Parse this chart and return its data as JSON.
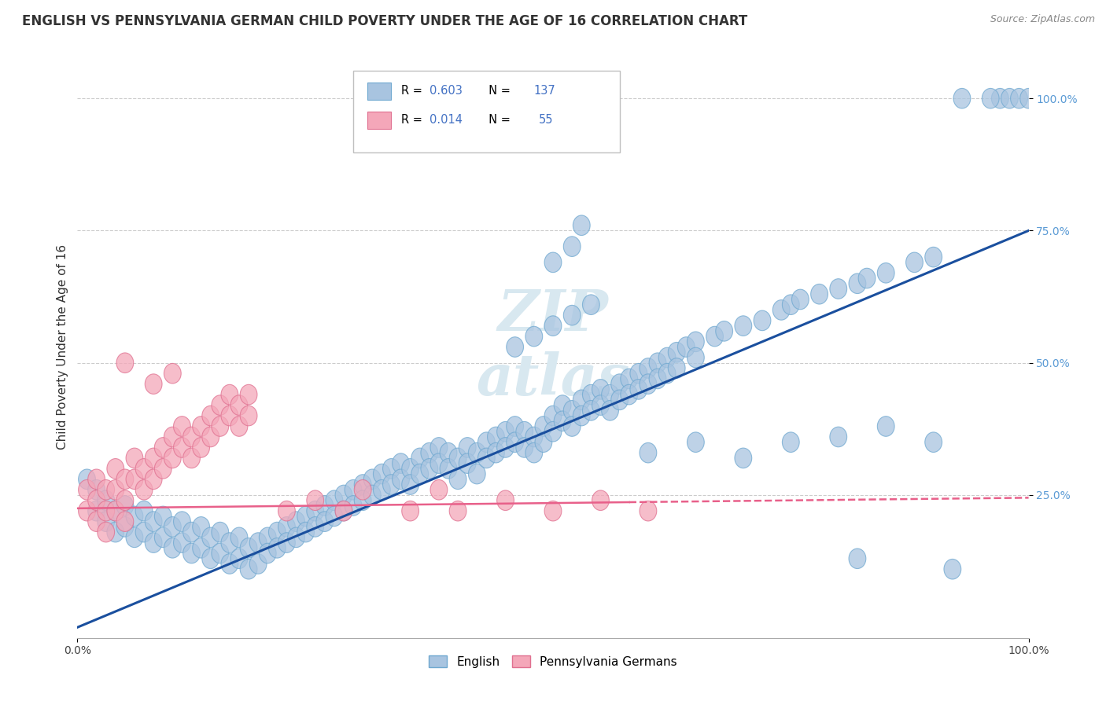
{
  "title": "ENGLISH VS PENNSYLVANIA GERMAN CHILD POVERTY UNDER THE AGE OF 16 CORRELATION CHART",
  "source": "Source: ZipAtlas.com",
  "ylabel": "Child Poverty Under the Age of 16",
  "xlim": [
    0.0,
    1.0
  ],
  "ylim": [
    -0.02,
    1.08
  ],
  "english_color": "#a8c4e0",
  "english_edge_color": "#6fa8d0",
  "pg_color": "#f4a7b9",
  "pg_edge_color": "#e07090",
  "line_english_color": "#1a4f9e",
  "line_pg_color": "#e8608a",
  "watermark_color": "#d8e8f0",
  "english_scatter": [
    [
      0.01,
      0.28
    ],
    [
      0.02,
      0.26
    ],
    [
      0.02,
      0.22
    ],
    [
      0.03,
      0.24
    ],
    [
      0.03,
      0.2
    ],
    [
      0.04,
      0.22
    ],
    [
      0.04,
      0.18
    ],
    [
      0.05,
      0.23
    ],
    [
      0.05,
      0.19
    ],
    [
      0.06,
      0.21
    ],
    [
      0.06,
      0.17
    ],
    [
      0.07,
      0.22
    ],
    [
      0.07,
      0.18
    ],
    [
      0.08,
      0.2
    ],
    [
      0.08,
      0.16
    ],
    [
      0.09,
      0.21
    ],
    [
      0.09,
      0.17
    ],
    [
      0.1,
      0.19
    ],
    [
      0.1,
      0.15
    ],
    [
      0.11,
      0.2
    ],
    [
      0.11,
      0.16
    ],
    [
      0.12,
      0.18
    ],
    [
      0.12,
      0.14
    ],
    [
      0.13,
      0.19
    ],
    [
      0.13,
      0.15
    ],
    [
      0.14,
      0.17
    ],
    [
      0.14,
      0.13
    ],
    [
      0.15,
      0.18
    ],
    [
      0.15,
      0.14
    ],
    [
      0.16,
      0.16
    ],
    [
      0.16,
      0.12
    ],
    [
      0.17,
      0.17
    ],
    [
      0.17,
      0.13
    ],
    [
      0.18,
      0.15
    ],
    [
      0.18,
      0.11
    ],
    [
      0.19,
      0.16
    ],
    [
      0.19,
      0.12
    ],
    [
      0.2,
      0.17
    ],
    [
      0.2,
      0.14
    ],
    [
      0.21,
      0.18
    ],
    [
      0.21,
      0.15
    ],
    [
      0.22,
      0.19
    ],
    [
      0.22,
      0.16
    ],
    [
      0.23,
      0.2
    ],
    [
      0.23,
      0.17
    ],
    [
      0.24,
      0.21
    ],
    [
      0.24,
      0.18
    ],
    [
      0.25,
      0.22
    ],
    [
      0.25,
      0.19
    ],
    [
      0.26,
      0.23
    ],
    [
      0.26,
      0.2
    ],
    [
      0.27,
      0.24
    ],
    [
      0.27,
      0.21
    ],
    [
      0.28,
      0.25
    ],
    [
      0.28,
      0.22
    ],
    [
      0.29,
      0.26
    ],
    [
      0.29,
      0.23
    ],
    [
      0.3,
      0.27
    ],
    [
      0.3,
      0.24
    ],
    [
      0.31,
      0.28
    ],
    [
      0.31,
      0.25
    ],
    [
      0.32,
      0.29
    ],
    [
      0.32,
      0.26
    ],
    [
      0.33,
      0.3
    ],
    [
      0.33,
      0.27
    ],
    [
      0.34,
      0.31
    ],
    [
      0.34,
      0.28
    ],
    [
      0.35,
      0.3
    ],
    [
      0.35,
      0.27
    ],
    [
      0.36,
      0.32
    ],
    [
      0.36,
      0.29
    ],
    [
      0.37,
      0.33
    ],
    [
      0.37,
      0.3
    ],
    [
      0.38,
      0.34
    ],
    [
      0.38,
      0.31
    ],
    [
      0.39,
      0.33
    ],
    [
      0.39,
      0.3
    ],
    [
      0.4,
      0.32
    ],
    [
      0.4,
      0.28
    ],
    [
      0.41,
      0.34
    ],
    [
      0.41,
      0.31
    ],
    [
      0.42,
      0.33
    ],
    [
      0.42,
      0.29
    ],
    [
      0.43,
      0.35
    ],
    [
      0.43,
      0.32
    ],
    [
      0.44,
      0.36
    ],
    [
      0.44,
      0.33
    ],
    [
      0.45,
      0.37
    ],
    [
      0.45,
      0.34
    ],
    [
      0.46,
      0.38
    ],
    [
      0.46,
      0.35
    ],
    [
      0.47,
      0.37
    ],
    [
      0.47,
      0.34
    ],
    [
      0.48,
      0.36
    ],
    [
      0.48,
      0.33
    ],
    [
      0.49,
      0.38
    ],
    [
      0.49,
      0.35
    ],
    [
      0.5,
      0.4
    ],
    [
      0.5,
      0.37
    ],
    [
      0.51,
      0.42
    ],
    [
      0.51,
      0.39
    ],
    [
      0.52,
      0.41
    ],
    [
      0.52,
      0.38
    ],
    [
      0.53,
      0.43
    ],
    [
      0.53,
      0.4
    ],
    [
      0.54,
      0.44
    ],
    [
      0.54,
      0.41
    ],
    [
      0.55,
      0.45
    ],
    [
      0.55,
      0.42
    ],
    [
      0.56,
      0.44
    ],
    [
      0.56,
      0.41
    ],
    [
      0.57,
      0.46
    ],
    [
      0.57,
      0.43
    ],
    [
      0.58,
      0.47
    ],
    [
      0.58,
      0.44
    ],
    [
      0.59,
      0.48
    ],
    [
      0.59,
      0.45
    ],
    [
      0.6,
      0.49
    ],
    [
      0.6,
      0.46
    ],
    [
      0.61,
      0.5
    ],
    [
      0.61,
      0.47
    ],
    [
      0.62,
      0.51
    ],
    [
      0.62,
      0.48
    ],
    [
      0.63,
      0.52
    ],
    [
      0.63,
      0.49
    ],
    [
      0.64,
      0.53
    ],
    [
      0.65,
      0.54
    ],
    [
      0.65,
      0.51
    ],
    [
      0.67,
      0.55
    ],
    [
      0.68,
      0.56
    ],
    [
      0.7,
      0.57
    ],
    [
      0.72,
      0.58
    ],
    [
      0.74,
      0.6
    ],
    [
      0.75,
      0.61
    ],
    [
      0.76,
      0.62
    ],
    [
      0.78,
      0.63
    ],
    [
      0.8,
      0.64
    ],
    [
      0.82,
      0.65
    ],
    [
      0.83,
      0.66
    ],
    [
      0.85,
      0.67
    ],
    [
      0.88,
      0.69
    ],
    [
      0.9,
      0.7
    ],
    [
      0.46,
      0.53
    ],
    [
      0.48,
      0.55
    ],
    [
      0.5,
      0.57
    ],
    [
      0.52,
      0.59
    ],
    [
      0.54,
      0.61
    ],
    [
      0.5,
      0.69
    ],
    [
      0.52,
      0.72
    ],
    [
      0.53,
      0.76
    ],
    [
      0.82,
      0.13
    ],
    [
      0.6,
      0.33
    ],
    [
      0.65,
      0.35
    ],
    [
      0.7,
      0.32
    ],
    [
      0.75,
      0.35
    ],
    [
      0.8,
      0.36
    ],
    [
      0.85,
      0.38
    ],
    [
      0.9,
      0.35
    ],
    [
      0.97,
      1.0
    ],
    [
      0.98,
      1.0
    ],
    [
      0.99,
      1.0
    ],
    [
      1.0,
      1.0
    ],
    [
      0.96,
      1.0
    ],
    [
      0.93,
      1.0
    ],
    [
      0.92,
      0.11
    ]
  ],
  "pg_scatter": [
    [
      0.01,
      0.22
    ],
    [
      0.01,
      0.26
    ],
    [
      0.02,
      0.28
    ],
    [
      0.02,
      0.24
    ],
    [
      0.02,
      0.2
    ],
    [
      0.03,
      0.26
    ],
    [
      0.03,
      0.22
    ],
    [
      0.03,
      0.18
    ],
    [
      0.04,
      0.3
    ],
    [
      0.04,
      0.26
    ],
    [
      0.04,
      0.22
    ],
    [
      0.05,
      0.28
    ],
    [
      0.05,
      0.24
    ],
    [
      0.05,
      0.2
    ],
    [
      0.06,
      0.32
    ],
    [
      0.06,
      0.28
    ],
    [
      0.07,
      0.3
    ],
    [
      0.07,
      0.26
    ],
    [
      0.08,
      0.32
    ],
    [
      0.08,
      0.28
    ],
    [
      0.09,
      0.34
    ],
    [
      0.09,
      0.3
    ],
    [
      0.1,
      0.36
    ],
    [
      0.1,
      0.32
    ],
    [
      0.11,
      0.38
    ],
    [
      0.11,
      0.34
    ],
    [
      0.12,
      0.36
    ],
    [
      0.12,
      0.32
    ],
    [
      0.13,
      0.38
    ],
    [
      0.13,
      0.34
    ],
    [
      0.14,
      0.4
    ],
    [
      0.14,
      0.36
    ],
    [
      0.15,
      0.42
    ],
    [
      0.15,
      0.38
    ],
    [
      0.16,
      0.44
    ],
    [
      0.16,
      0.4
    ],
    [
      0.17,
      0.42
    ],
    [
      0.17,
      0.38
    ],
    [
      0.18,
      0.44
    ],
    [
      0.18,
      0.4
    ],
    [
      0.05,
      0.5
    ],
    [
      0.08,
      0.46
    ],
    [
      0.1,
      0.48
    ],
    [
      0.22,
      0.22
    ],
    [
      0.25,
      0.24
    ],
    [
      0.28,
      0.22
    ],
    [
      0.3,
      0.26
    ],
    [
      0.35,
      0.22
    ],
    [
      0.38,
      0.26
    ],
    [
      0.4,
      0.22
    ],
    [
      0.45,
      0.24
    ],
    [
      0.5,
      0.22
    ],
    [
      0.55,
      0.24
    ],
    [
      0.6,
      0.22
    ]
  ],
  "english_line": {
    "x0": 0.0,
    "y0": 0.0,
    "x1": 1.0,
    "y1": 0.75
  },
  "pg_line": {
    "x0": 0.0,
    "y0": 0.225,
    "x1": 1.0,
    "y1": 0.245
  }
}
